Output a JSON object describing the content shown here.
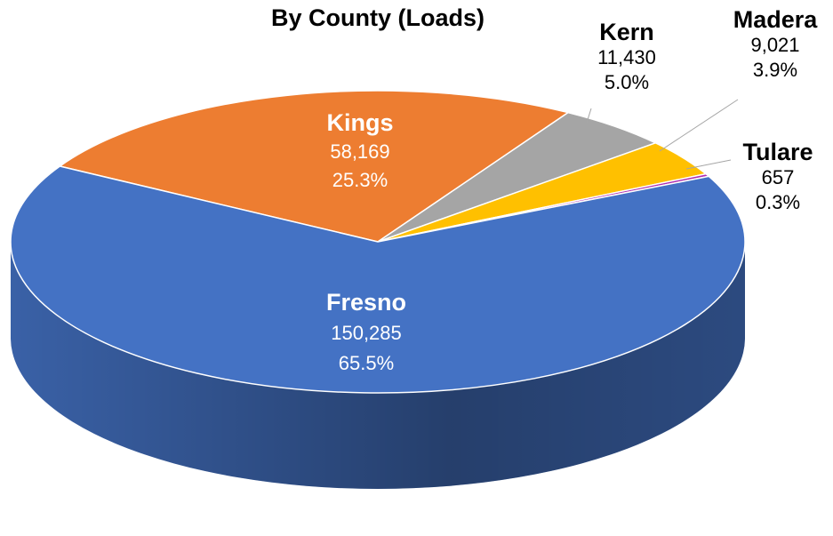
{
  "chart_data": {
    "type": "pie3d",
    "title": "By County (Loads)",
    "categories": [
      "Kings",
      "Kern",
      "Madera",
      "Tulare",
      "Fresno"
    ],
    "values": [
      58169,
      11430,
      9021,
      657,
      150285
    ],
    "value_labels": [
      "58,169",
      "11,430",
      "9,021",
      "657",
      "150,285"
    ],
    "percent_labels": [
      "25.3%",
      "5.0%",
      "3.9%",
      "0.3%",
      "65.5%"
    ],
    "colors": [
      "#ed7d31",
      "#a5a5a5",
      "#ffc000",
      "#b030b0",
      "#4472c4"
    ]
  }
}
